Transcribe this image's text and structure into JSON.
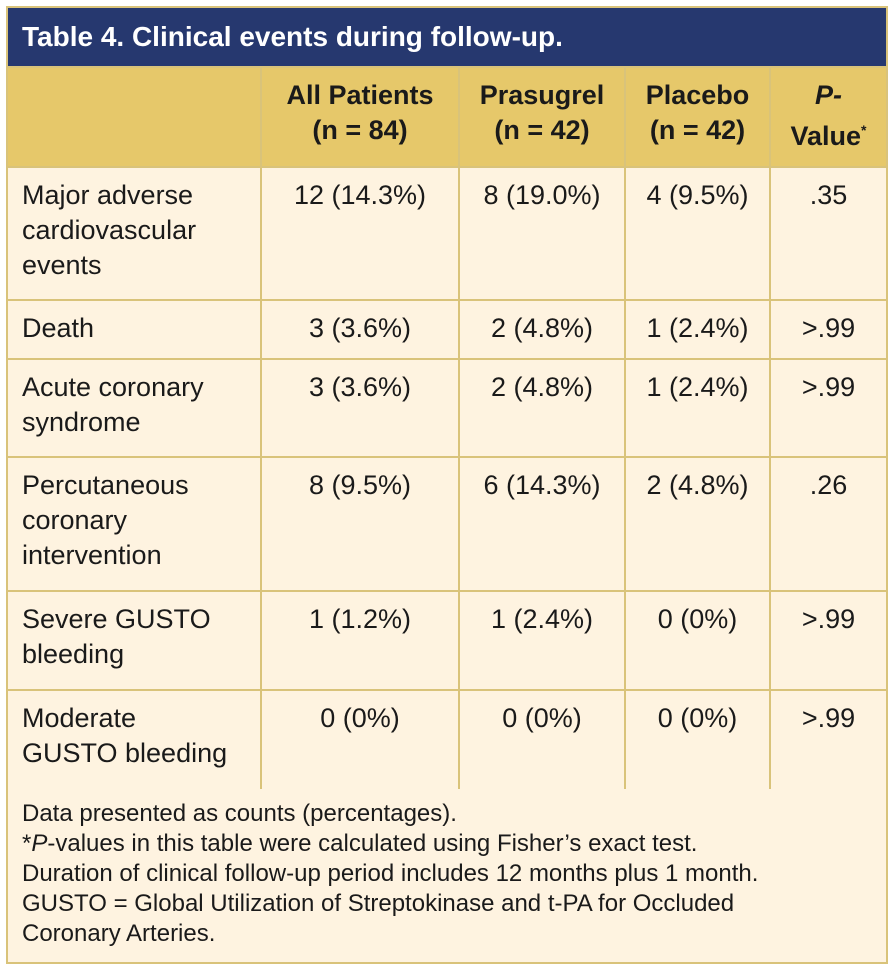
{
  "title": "Table 4. Clinical events during follow-up.",
  "header": {
    "col1_line1": "All Patients",
    "col1_line2": "(n = 84)",
    "col2_line1": "Prasugrel",
    "col2_line2": "(n = 42)",
    "col3_line1": "Placebo",
    "col3_line2": "(n = 42)",
    "col4_line1": "P-",
    "col4_line2": "Value",
    "col4_star": "*"
  },
  "rows": [
    {
      "label_lines": [
        "Major adverse",
        "cardiovascular",
        "events"
      ],
      "all": "12 (14.3%)",
      "prasugrel": "8 (19.0%)",
      "placebo": "4 (9.5%)",
      "p": ".35"
    },
    {
      "label_lines": [
        "Death"
      ],
      "all": "3 (3.6%)",
      "prasugrel": "2 (4.8%)",
      "placebo": "1 (2.4%)",
      "p": ">.99"
    },
    {
      "label_lines": [
        "Acute coronary",
        "syndrome"
      ],
      "all": "3 (3.6%)",
      "prasugrel": "2 (4.8%)",
      "placebo": "1 (2.4%)",
      "p": ">.99"
    },
    {
      "label_lines": [
        "Percutaneous",
        "coronary",
        "intervention"
      ],
      "all": "8 (9.5%)",
      "prasugrel": "6 (14.3%)",
      "placebo": "2 (4.8%)",
      "p": ".26"
    },
    {
      "label_lines": [
        "Severe GUSTO",
        "bleeding"
      ],
      "all": "1 (1.2%)",
      "prasugrel": "1 (2.4%)",
      "placebo": "0 (0%)",
      "p": ">.99"
    },
    {
      "label_lines": [
        "Moderate",
        "GUSTO bleeding"
      ],
      "all": "0 (0%)",
      "prasugrel": "0 (0%)",
      "placebo": "0 (0%)",
      "p": ">.99"
    }
  ],
  "footnotes": {
    "line1": "Data presented as counts (percentages).",
    "line2_star": "*",
    "line2_italic": "P",
    "line2_rest": "-values in this table were calculated using Fisher’s exact test.",
    "line3": "Duration of clinical follow-up period includes 12 months plus 1 month.",
    "line4": "GUSTO = Global Utilization of Streptokinase and t-PA for Occluded",
    "line5": "Coronary Arteries."
  },
  "colors": {
    "title_bg": "#26386f",
    "header_bg": "#e6c86a",
    "body_bg": "#fef3e0",
    "border": "#d9c37a"
  }
}
